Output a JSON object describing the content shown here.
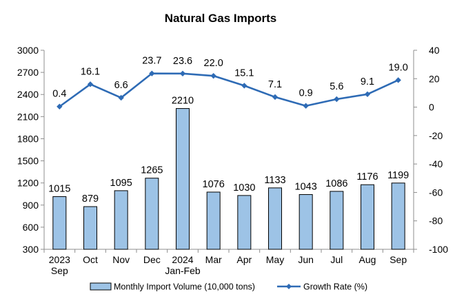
{
  "chart_data": {
    "type": "bar+line",
    "title": "Natural Gas Imports",
    "categories": [
      [
        "2023",
        "Sep"
      ],
      [
        "Oct"
      ],
      [
        "Nov"
      ],
      [
        "Dec"
      ],
      [
        "2024",
        "Jan-Feb"
      ],
      [
        "Mar"
      ],
      [
        "Apr"
      ],
      [
        "May"
      ],
      [
        "Jun"
      ],
      [
        "Jul"
      ],
      [
        "Aug"
      ],
      [
        "Sep"
      ]
    ],
    "series": [
      {
        "name": "Monthly Import Volume (10,000 tons)",
        "type": "bar",
        "axis": "left",
        "color": "#9DC3E6",
        "values": [
          1015,
          879,
          1095,
          1265,
          2210,
          1076,
          1030,
          1133,
          1043,
          1086,
          1176,
          1199
        ],
        "labels": [
          "1015",
          "879",
          "1095",
          "1265",
          "2210",
          "1076",
          "1030",
          "1133",
          "1043",
          "1086",
          "1176",
          "1199"
        ]
      },
      {
        "name": "Growth Rate (%)",
        "type": "line",
        "axis": "right",
        "color": "#2E6BB5",
        "values": [
          0.4,
          16.1,
          6.6,
          23.7,
          23.6,
          22.0,
          15.1,
          7.1,
          0.9,
          5.6,
          9.1,
          19.0
        ],
        "labels": [
          "0.4",
          "16.1",
          "6.6",
          "23.7",
          "23.6",
          "22.0",
          "15.1",
          "7.1",
          "0.9",
          "5.6",
          "9.1",
          "19.0"
        ]
      }
    ],
    "y_left": {
      "min": 300,
      "max": 3000,
      "ticks": [
        "300",
        "600",
        "900",
        "1200",
        "1500",
        "1800",
        "2100",
        "2400",
        "2700",
        "3000"
      ]
    },
    "y_right": {
      "min": -100,
      "max": 40,
      "ticks": [
        "-100",
        "-80",
        "-60",
        "-40",
        "-20",
        "0",
        "20",
        "40"
      ]
    },
    "grid": false,
    "legend": "bottom"
  }
}
